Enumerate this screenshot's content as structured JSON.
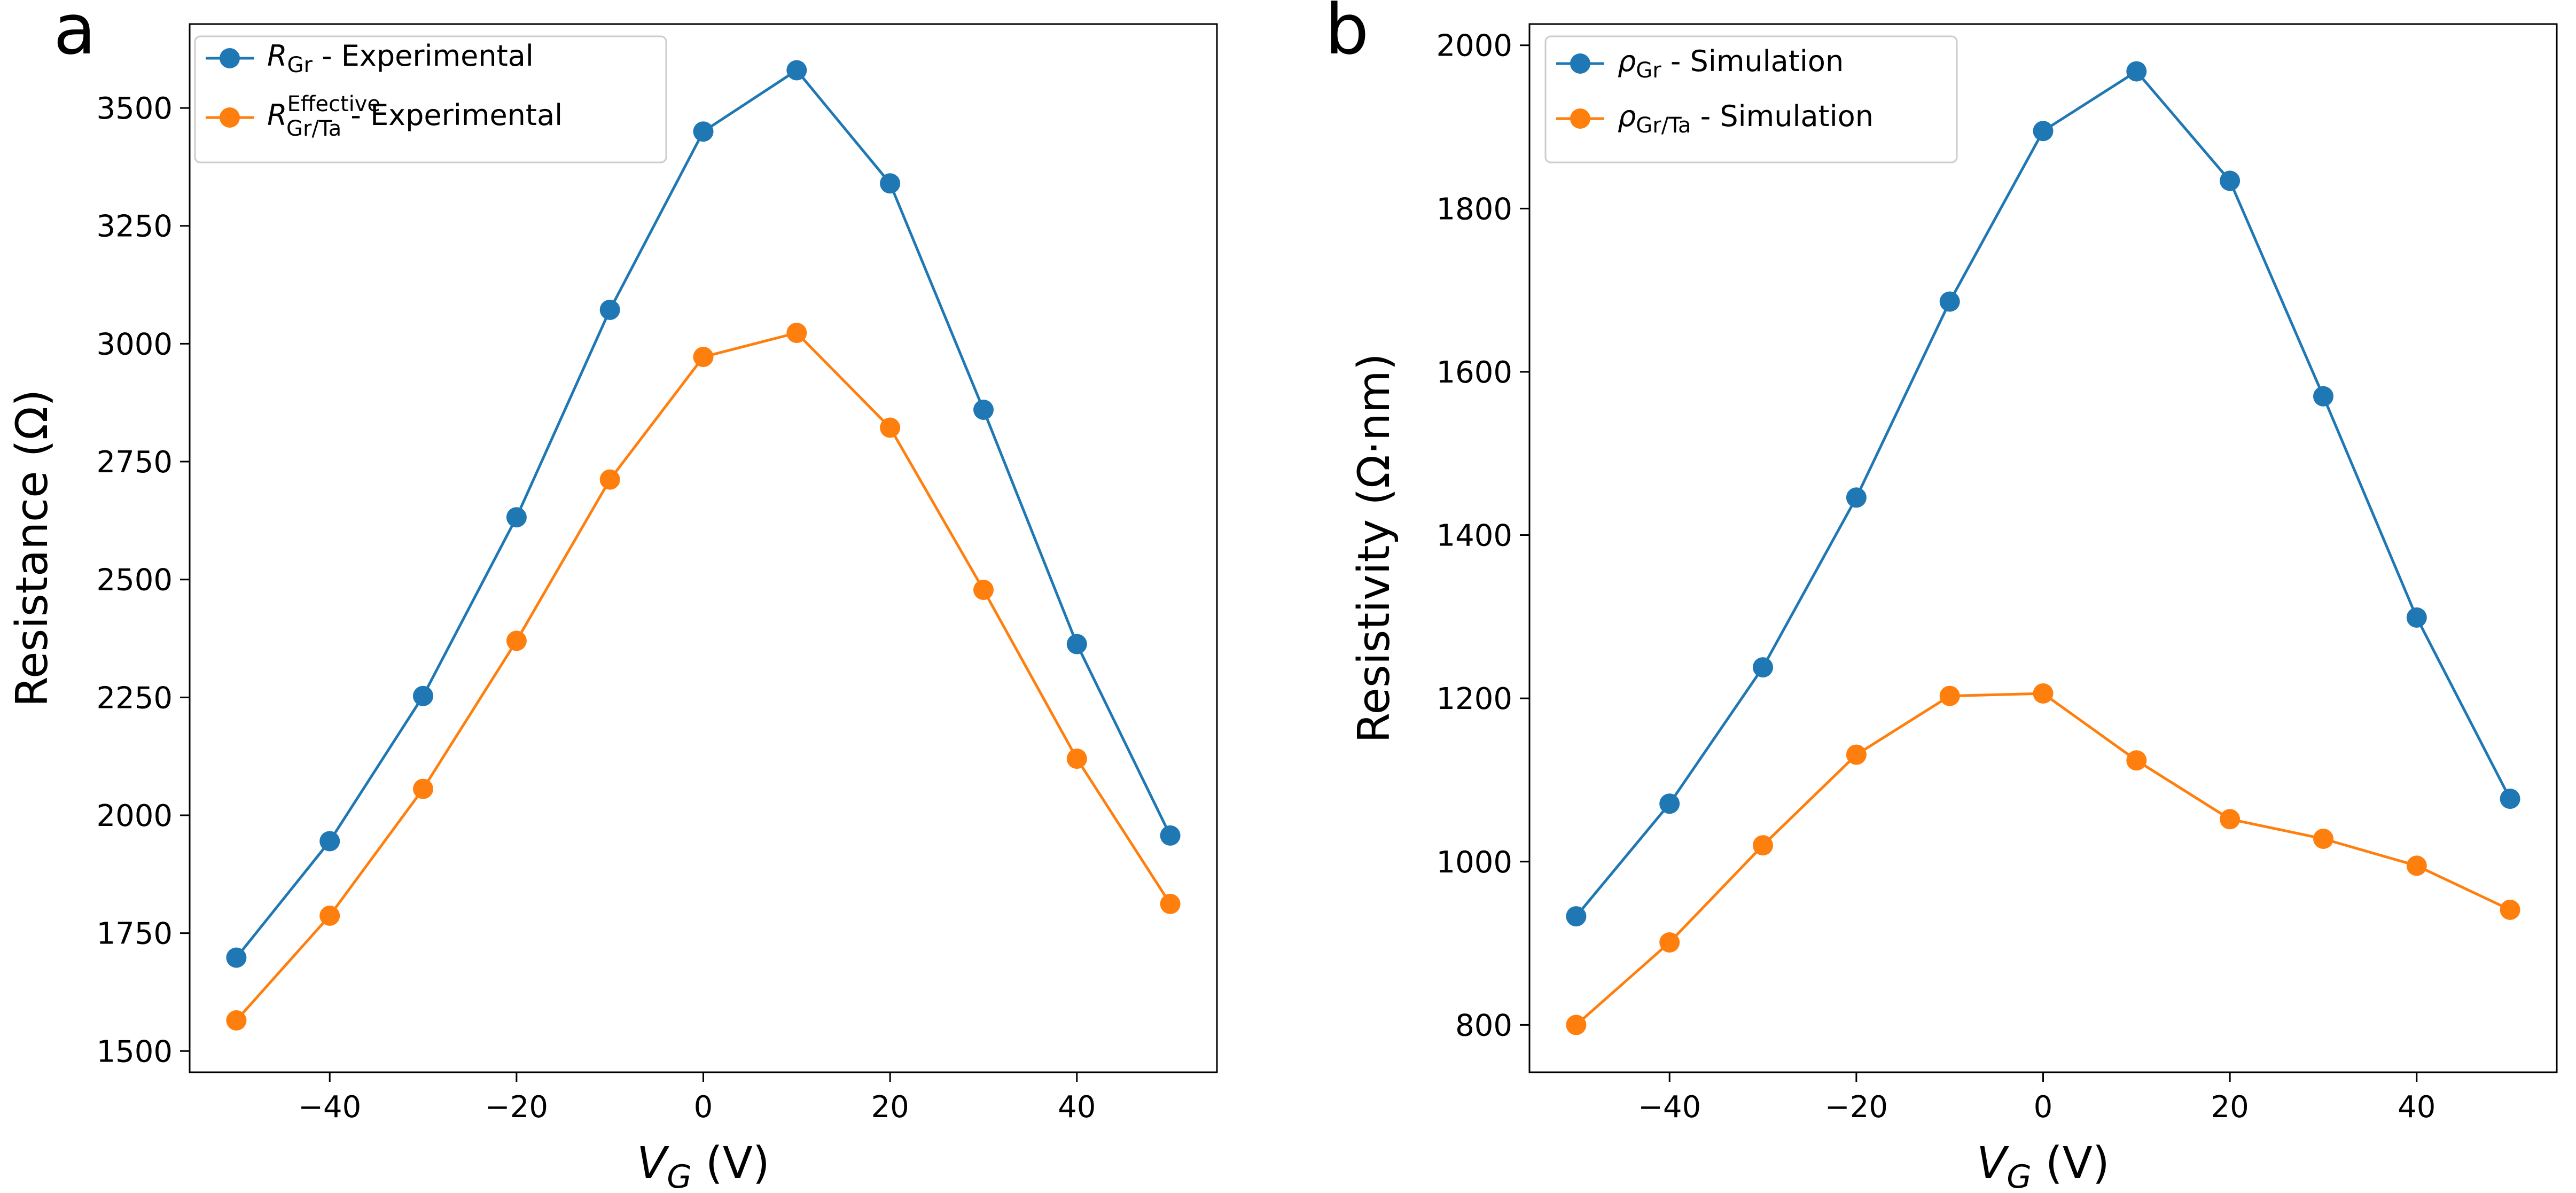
{
  "colors": {
    "blue": "#1f77b4",
    "orange": "#ff7f0e"
  },
  "chart_data": [
    {
      "panel_label": "a",
      "type": "line",
      "xlabel_symbol": "V",
      "xlabel_subscript": "G",
      "xlabel_unit": " (V)",
      "ylabel": "Resistance (Ω)",
      "x": [
        -50,
        -40,
        -30,
        -20,
        -10,
        0,
        10,
        20,
        30,
        40,
        50
      ],
      "xlim": [
        -55,
        55
      ],
      "ylim": [
        1455,
        3678
      ],
      "xticks": [
        -40,
        -20,
        0,
        20,
        40
      ],
      "xtick_labels": [
        "−40",
        "−20",
        "0",
        "20",
        "40"
      ],
      "yticks": [
        1500,
        1750,
        2000,
        2250,
        2500,
        2750,
        3000,
        3250,
        3500
      ],
      "ytick_labels": [
        "1500",
        "1750",
        "2000",
        "2250",
        "2500",
        "2750",
        "3000",
        "3250",
        "3500"
      ],
      "legend_position": "top-left",
      "series": [
        {
          "name": "R_Gr - Experimental",
          "legend_symbol": "R",
          "legend_subscript": "Gr",
          "legend_superscript": "",
          "legend_suffix": " - Experimental",
          "color": "#1f77b4",
          "values": [
            1698,
            1945,
            2253,
            2632,
            3072,
            3450,
            3580,
            3340,
            2860,
            2363,
            1957
          ]
        },
        {
          "name": "R_Gr/Ta^Effective - Experimental",
          "legend_symbol": "R",
          "legend_subscript": "Gr/Ta",
          "legend_superscript": "Effective",
          "legend_suffix": " - Experimental",
          "color": "#ff7f0e",
          "values": [
            1565,
            1787,
            2056,
            2370,
            2712,
            2972,
            3023,
            2822,
            2478,
            2120,
            1812
          ]
        }
      ]
    },
    {
      "panel_label": "b",
      "type": "line",
      "xlabel_symbol": "V",
      "xlabel_subscript": "G",
      "xlabel_unit": " (V)",
      "ylabel": "Resistivity (Ω·nm)",
      "x": [
        -50,
        -40,
        -30,
        -20,
        -10,
        0,
        10,
        20,
        30,
        40,
        50
      ],
      "xlim": [
        -55,
        55
      ],
      "ylim": [
        742,
        2026
      ],
      "xticks": [
        -40,
        -20,
        0,
        20,
        40
      ],
      "xtick_labels": [
        "−40",
        "−20",
        "0",
        "20",
        "40"
      ],
      "yticks": [
        800,
        1000,
        1200,
        1400,
        1600,
        1800,
        2000
      ],
      "ytick_labels": [
        "800",
        "1000",
        "1200",
        "1400",
        "1600",
        "1800",
        "2000"
      ],
      "legend_position": "top-left",
      "series": [
        {
          "name": "ρ_Gr - Simulation",
          "legend_symbol": "ρ",
          "legend_subscript": "Gr",
          "legend_superscript": "",
          "legend_suffix": " - Simulation",
          "color": "#1f77b4",
          "values": [
            933,
            1071,
            1238,
            1446,
            1686,
            1895,
            1968,
            1834,
            1570,
            1299,
            1077
          ]
        },
        {
          "name": "ρ_Gr/Ta - Simulation",
          "legend_symbol": "ρ",
          "legend_subscript": "Gr/Ta",
          "legend_superscript": "",
          "legend_suffix": " - Simulation",
          "color": "#ff7f0e",
          "values": [
            800,
            901,
            1020,
            1131,
            1203,
            1206,
            1124,
            1052,
            1028,
            995,
            941
          ]
        }
      ]
    }
  ]
}
